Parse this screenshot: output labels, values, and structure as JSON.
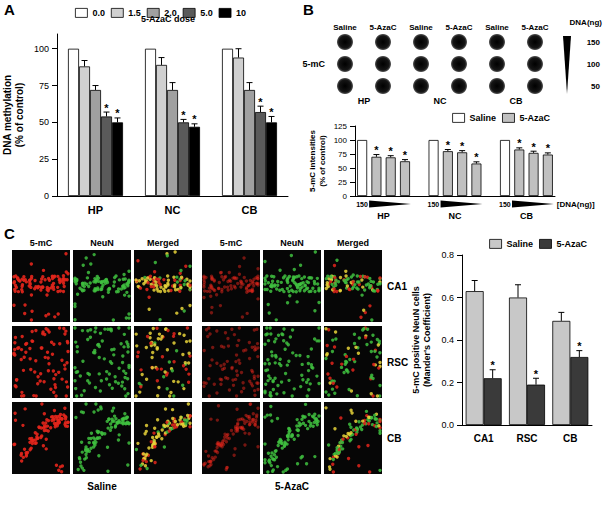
{
  "chart_data": [
    {
      "panel": "A",
      "type": "bar",
      "ylabel": "DNA methylation (% of control)",
      "legend_title": "5-AzaC dose",
      "legend": "top",
      "grid": false,
      "categories": [
        "HP",
        "NC",
        "CB"
      ],
      "ylim": [
        0,
        110
      ],
      "yticks": [
        0,
        25,
        50,
        75,
        100
      ],
      "series": [
        {
          "name": "0.0",
          "color": "#ffffff",
          "values": [
            100,
            100,
            100
          ],
          "errors": [
            null,
            null,
            null
          ],
          "sig": [
            null,
            null,
            null
          ]
        },
        {
          "name": "1.5",
          "color": "#d0d0d0",
          "values": [
            88,
            89,
            94
          ],
          "errors": [
            4,
            5,
            6
          ],
          "sig": [
            null,
            null,
            null
          ]
        },
        {
          "name": "2.0",
          "color": "#a0a0a0",
          "values": [
            72,
            72,
            72
          ],
          "errors": [
            3,
            5,
            5
          ],
          "sig": [
            null,
            null,
            null
          ]
        },
        {
          "name": "5.0",
          "color": "#5a5a5a",
          "values": [
            54,
            50,
            57
          ],
          "errors": [
            3,
            2,
            4
          ],
          "sig": [
            "*",
            "*",
            "*"
          ]
        },
        {
          "name": "10",
          "color": "#000000",
          "values": [
            50,
            47,
            50
          ],
          "errors": [
            3,
            2,
            4
          ],
          "sig": [
            "*",
            "*",
            "*"
          ]
        }
      ]
    },
    {
      "panel": "B",
      "type": "bar",
      "ylabel": "5-mC intensities (% of control)",
      "legend": "top-right",
      "grid": false,
      "categories": [
        null,
        null,
        null,
        null,
        null,
        null,
        null,
        null,
        null,
        null,
        null,
        null,
        null,
        null
      ],
      "groups": [
        "HP",
        "NC",
        "CB"
      ],
      "dna_start": "150",
      "dna_label": "[DNA(ng)]",
      "ylim": [
        0,
        125
      ],
      "yticks": [
        0,
        25,
        50,
        75,
        100,
        125
      ],
      "series": [
        {
          "name": "Saline",
          "color": "#ffffff",
          "values": [
            100,
            null,
            null,
            null,
            null,
            100,
            null,
            null,
            null,
            null,
            100,
            null,
            null,
            null
          ],
          "errors": [
            null,
            null,
            null,
            null,
            null,
            null,
            null,
            null,
            null,
            null,
            null,
            null,
            null,
            null
          ],
          "sig": [
            null,
            null,
            null,
            null,
            null,
            null,
            null,
            null,
            null,
            null,
            null,
            null,
            null,
            null
          ]
        },
        {
          "name": "5-AzaC",
          "color": "#c0c0c0",
          "values": [
            null,
            70,
            69,
            62,
            null,
            null,
            80,
            78,
            58,
            null,
            null,
            83,
            77,
            74
          ],
          "errors": [
            null,
            4,
            3,
            3,
            null,
            null,
            3,
            3,
            3,
            null,
            null,
            3,
            3,
            3
          ],
          "sig": [
            null,
            "*",
            "*",
            "*",
            null,
            null,
            "*",
            "*",
            "*",
            null,
            null,
            "*",
            "*",
            "*"
          ]
        }
      ]
    },
    {
      "panel": "C",
      "type": "bar",
      "ylabel": "5-mC positive NeuN cells (Mander's Coefficient)",
      "legend": "top-right",
      "grid": false,
      "categories": [
        "CA1",
        "RSC",
        "CB"
      ],
      "ylim": [
        0,
        0.8
      ],
      "yticks": [
        {
          "value": 0,
          "label": "0.0"
        },
        0.2,
        0.4,
        0.6,
        0.8
      ],
      "series": [
        {
          "name": "Saline",
          "color": "#c8c8c8",
          "values": [
            0.63,
            0.6,
            0.49
          ],
          "errors": [
            0.05,
            0.06,
            0.04
          ],
          "sig": [
            null,
            null,
            null
          ]
        },
        {
          "name": "5-AzaC",
          "color": "#3a3a3a",
          "values": [
            0.22,
            0.19,
            0.32
          ],
          "errors": [
            0.04,
            0.03,
            0.03
          ],
          "sig": [
            "*",
            "*",
            "*"
          ]
        }
      ]
    }
  ],
  "blot": {
    "label": "5-mC",
    "columns": [
      "Saline",
      "5-AzaC",
      "Saline",
      "5-AzaC",
      "Saline",
      "5-AzaC"
    ],
    "groups": [
      "HP",
      "NC",
      "CB"
    ],
    "amount_label": "DNA(ng)",
    "rows": [
      150,
      100,
      50
    ]
  },
  "micrographs": {
    "channels": [
      "5-mC",
      "NeuN",
      "Merged"
    ],
    "regions": [
      "CA1",
      "RSC",
      "CB"
    ],
    "conditions": [
      "Saline",
      "5-AzaC"
    ]
  }
}
